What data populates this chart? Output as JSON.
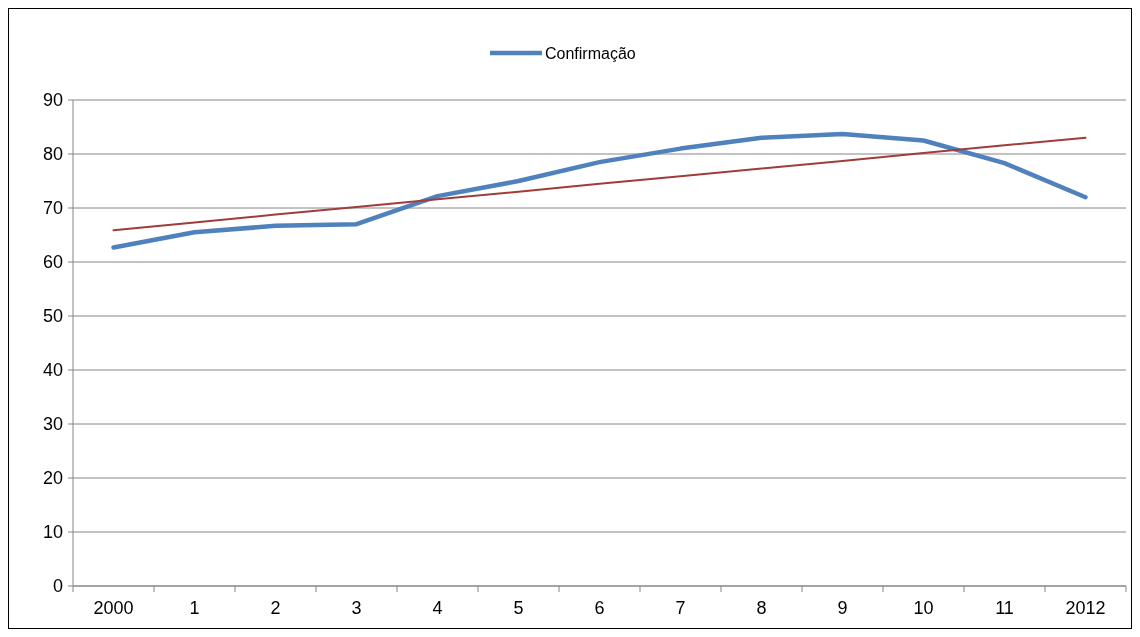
{
  "chart_data": {
    "type": "line",
    "categories": [
      "2000",
      "1",
      "2",
      "3",
      "4",
      "5",
      "6",
      "7",
      "8",
      "9",
      "10",
      "11",
      "2012"
    ],
    "series": [
      {
        "name": "Confirmação",
        "color": "#4f81bd",
        "values": [
          62.7,
          65.5,
          66.7,
          67.0,
          72.2,
          75.0,
          78.5,
          81.0,
          83.0,
          83.7,
          82.5,
          78.3,
          72.0
        ]
      },
      {
        "color": "#a03c3c",
        "values": [
          65.9,
          67.3,
          68.8,
          70.2,
          71.6,
          73.0,
          74.5,
          75.9,
          77.3,
          78.7,
          80.2,
          81.6,
          83.0
        ]
      }
    ],
    "ylim": [
      0,
      90
    ],
    "yticks": [
      0,
      10,
      20,
      30,
      40,
      50,
      60,
      70,
      80,
      90
    ],
    "grid": "y",
    "legend": "top",
    "marker": "none",
    "line_style": "solid"
  }
}
